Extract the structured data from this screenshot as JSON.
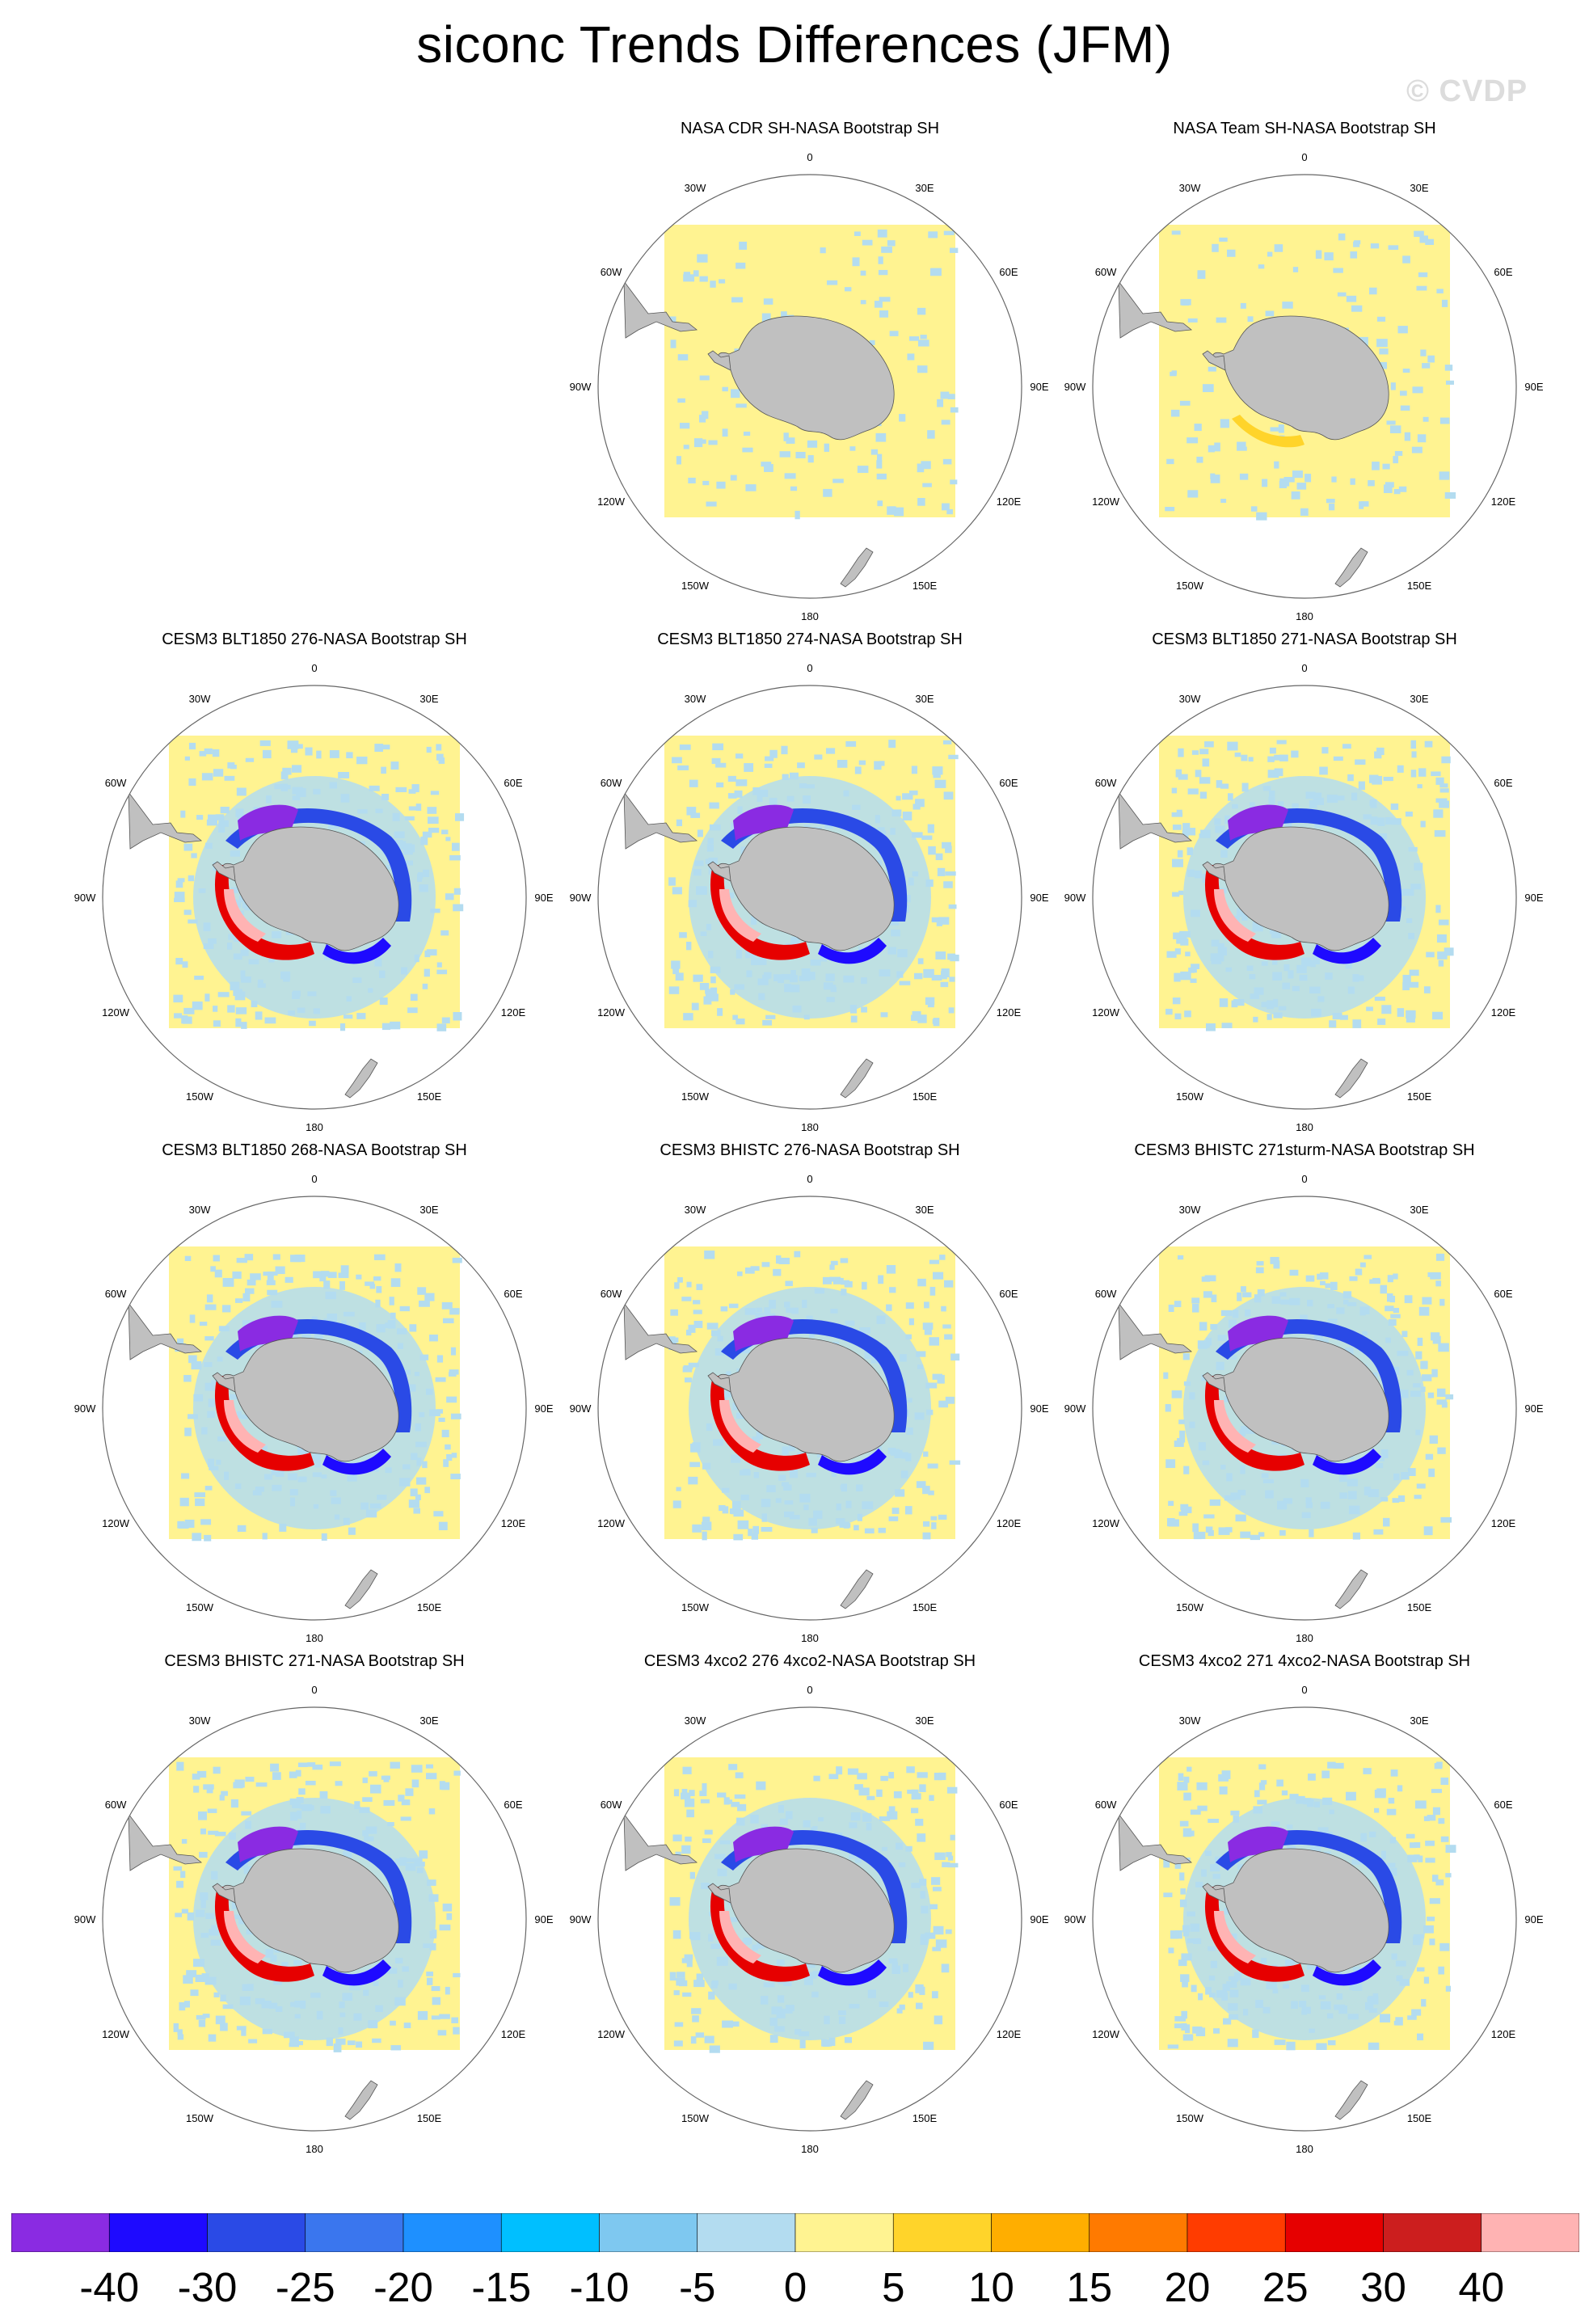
{
  "title": "siconc Trends Differences (JFM)",
  "watermark": "© CVDP",
  "colors": {
    "land": "#c0c0c0",
    "neutral_pos": "#fff391",
    "neutral_neg": "#b3dcf0",
    "coast": "#555555"
  },
  "lon_labels": [
    "0",
    "30E",
    "60E",
    "90E",
    "120E",
    "150E",
    "180",
    "150W",
    "120W",
    "90W",
    "60W",
    "30W"
  ],
  "panels": [
    {
      "title": "NASA CDR SH-NASA Bootstrap SH",
      "pattern": "obs1"
    },
    {
      "title": "NASA Team SH-NASA Bootstrap SH",
      "pattern": "obs2"
    },
    {
      "title": "CESM3 BLT1850 276-NASA Bootstrap SH",
      "pattern": "model"
    },
    {
      "title": "CESM3 BLT1850 274-NASA Bootstrap SH",
      "pattern": "model"
    },
    {
      "title": "CESM3 BLT1850 271-NASA Bootstrap SH",
      "pattern": "model"
    },
    {
      "title": "CESM3 BLT1850 268-NASA Bootstrap SH",
      "pattern": "model"
    },
    {
      "title": "CESM3 BHISTC 276-NASA Bootstrap SH",
      "pattern": "model"
    },
    {
      "title": "CESM3 BHISTC 271sturm-NASA Bootstrap SH",
      "pattern": "model"
    },
    {
      "title": "CESM3 BHISTC 271-NASA Bootstrap SH",
      "pattern": "model"
    },
    {
      "title": "CESM3 4xco2 276 4xco2-NASA Bootstrap SH",
      "pattern": "model"
    },
    {
      "title": "CESM3 4xco2 271 4xco2-NASA Bootstrap SH",
      "pattern": "model"
    }
  ],
  "colorbar": {
    "colors": [
      "#8a2be2",
      "#1e0aff",
      "#2a4ae6",
      "#3a76ee",
      "#1e90ff",
      "#00bfff",
      "#7ec8f0",
      "#b3dcf0",
      "#fff391",
      "#ffd42a",
      "#ffae00",
      "#ff7a00",
      "#ff3c00",
      "#e60000",
      "#cc1e1e",
      "#ffb3b3"
    ],
    "labels": [
      "-40",
      "-30",
      "-25",
      "-20",
      "-15",
      "-10",
      "-5",
      "0",
      "5",
      "10",
      "15",
      "20",
      "25",
      "30",
      "40"
    ]
  }
}
